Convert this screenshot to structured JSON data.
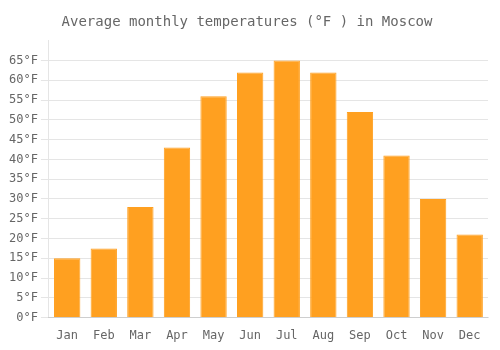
{
  "chart_data": {
    "type": "bar",
    "title": "Average monthly temperatures (°F ) in Moscow",
    "categories": [
      "Jan",
      "Feb",
      "Mar",
      "Apr",
      "May",
      "Jun",
      "Jul",
      "Aug",
      "Sep",
      "Oct",
      "Nov",
      "Dec"
    ],
    "values": [
      15,
      17.5,
      28,
      43,
      56,
      62,
      65,
      62,
      52,
      41,
      30,
      21
    ],
    "color": "#FFA020",
    "ylim": [
      0,
      70
    ],
    "yticks": [
      {
        "value": 0,
        "label": "0°F"
      },
      {
        "value": 5,
        "label": "5°F"
      },
      {
        "value": 10,
        "label": "10°F"
      },
      {
        "value": 15,
        "label": "15°F"
      },
      {
        "value": 20,
        "label": "20°F"
      },
      {
        "value": 25,
        "label": "25°F"
      },
      {
        "value": 30,
        "label": "30°F"
      },
      {
        "value": 35,
        "label": "35°F"
      },
      {
        "value": 40,
        "label": "40°F"
      },
      {
        "value": 45,
        "label": "45°F"
      },
      {
        "value": 50,
        "label": "50°F"
      },
      {
        "value": 55,
        "label": "55°F"
      },
      {
        "value": 60,
        "label": "60°F"
      },
      {
        "value": 65,
        "label": "65°F"
      }
    ],
    "grid": true
  }
}
